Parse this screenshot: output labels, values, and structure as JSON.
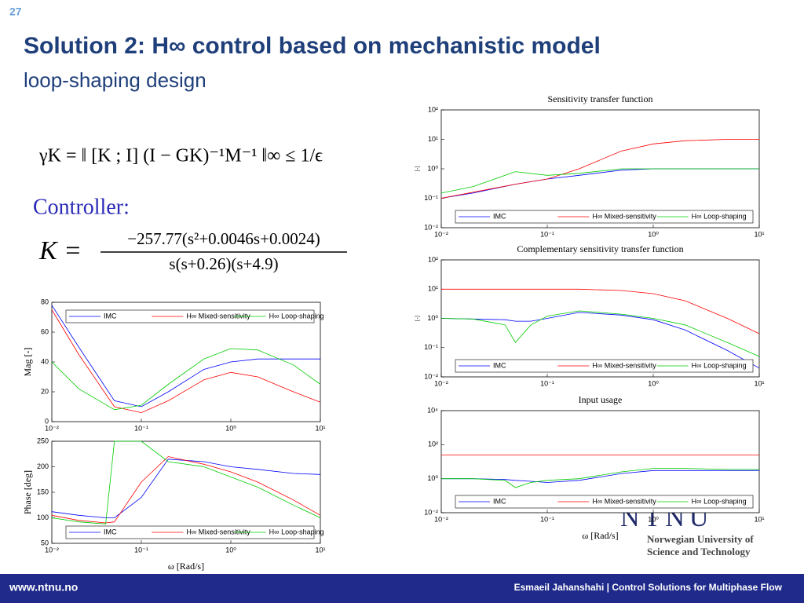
{
  "slide": {
    "page_number": "27",
    "title": "Solution 2: H∞ control based on mechanistic model",
    "subtitle": "loop-shaping design",
    "formula_gamma": "γK = ‖ [K ; I] (I − GK)⁻¹M⁻¹ ‖∞ ≤ 1/ϵ",
    "controller_label": "Controller:",
    "formula_k_lhs": "K =",
    "formula_k_num": "−257.77(s²+0.0046s+0.0024)",
    "formula_k_den": "s(s+0.26)(s+4.9)",
    "logo": "NTNU",
    "university_line1": "Norwegian University of",
    "university_line2": "Science and Technology",
    "footer_left": "www.ntnu.no",
    "footer_right": "Esmaeil Jahanshahi  |  Control Solutions for Multiphase Flow"
  },
  "chart_data": [
    {
      "type": "line",
      "ylabel": "Mag [-]",
      "xlog": true,
      "ylog": false,
      "legend": "top",
      "x": [
        0.01,
        0.02,
        0.05,
        0.1,
        0.2,
        0.5,
        1,
        2,
        5,
        10
      ],
      "xlim": [
        0.01,
        10
      ],
      "xticks": [
        {
          "value": 0.01,
          "label": "10⁻²"
        },
        {
          "value": 0.1,
          "label": "10⁻¹"
        },
        {
          "value": 1,
          "label": "10⁰"
        },
        {
          "value": 10,
          "label": "10¹"
        }
      ],
      "ylim": [
        0,
        80
      ],
      "yticks": [
        0,
        20,
        40,
        60,
        80
      ],
      "series": [
        {
          "name": "IMC",
          "color": "#0000ff",
          "values": [
            78,
            50,
            14,
            10,
            20,
            35,
            40,
            42,
            42,
            42
          ]
        },
        {
          "name": "H∞ Mixed-sensitivity",
          "color": "#ff0000",
          "values": [
            75,
            45,
            10,
            6,
            14,
            28,
            33,
            30,
            20,
            13
          ]
        },
        {
          "name": "H∞ Loop-shaping",
          "color": "#00cc00",
          "values": [
            40,
            22,
            8,
            11,
            25,
            42,
            49,
            48,
            38,
            25
          ]
        }
      ]
    },
    {
      "type": "line",
      "ylabel": "Phase [deg]",
      "xlabel": "ω [Rad/s]",
      "xlog": true,
      "ylog": false,
      "legend": "bottom",
      "x": [
        0.01,
        0.02,
        0.04,
        0.05,
        0.1,
        0.2,
        0.5,
        1,
        2,
        5,
        10
      ],
      "xlim": [
        0.01,
        10
      ],
      "xticks": [
        {
          "value": 0.01,
          "label": "10⁻²"
        },
        {
          "value": 0.1,
          "label": "10⁻¹"
        },
        {
          "value": 1,
          "label": "10⁰"
        },
        {
          "value": 10,
          "label": "10¹"
        }
      ],
      "ylim": [
        50,
        250
      ],
      "yticks": [
        50,
        100,
        150,
        200,
        250
      ],
      "series": [
        {
          "name": "IMC",
          "color": "#0000ff",
          "values": [
            112,
            105,
            100,
            100,
            140,
            215,
            210,
            200,
            195,
            187,
            185
          ]
        },
        {
          "name": "H∞ Mixed-sensitivity",
          "color": "#ff0000",
          "values": [
            105,
            95,
            90,
            92,
            170,
            220,
            205,
            190,
            170,
            135,
            105
          ]
        },
        {
          "name": "H∞ Loop-shaping",
          "color": "#00cc00",
          "values": [
            100,
            92,
            88,
            250,
            250,
            210,
            200,
            180,
            160,
            125,
            100
          ]
        }
      ]
    },
    {
      "type": "line",
      "title": "Sensitivity transfer function",
      "ylabel": "[-]",
      "xlog": true,
      "ylog": true,
      "legend": "bottom",
      "x": [
        0.01,
        0.02,
        0.05,
        0.1,
        0.2,
        0.5,
        1,
        2,
        5,
        10
      ],
      "xlim": [
        0.01,
        10
      ],
      "xticks": [
        {
          "value": 0.01,
          "label": "10⁻²"
        },
        {
          "value": 0.1,
          "label": "10⁻¹"
        },
        {
          "value": 1,
          "label": "10⁰"
        },
        {
          "value": 10,
          "label": "10¹"
        }
      ],
      "ylim": [
        0.01,
        100
      ],
      "yticks": [
        {
          "value": 0.01,
          "label": "10⁻²"
        },
        {
          "value": 0.1,
          "label": "10⁻¹"
        },
        {
          "value": 1,
          "label": "10⁰"
        },
        {
          "value": 10,
          "label": "10¹"
        },
        {
          "value": 100,
          "label": "10²"
        }
      ],
      "series": [
        {
          "name": "IMC",
          "color": "#0000ff",
          "values": [
            0.1,
            0.15,
            0.3,
            0.45,
            0.6,
            0.9,
            1,
            1,
            1,
            1
          ]
        },
        {
          "name": "H∞ Mixed-sensitivity",
          "color": "#ff0000",
          "values": [
            0.1,
            0.16,
            0.3,
            0.45,
            1,
            4,
            7,
            9,
            10,
            10
          ]
        },
        {
          "name": "H∞ Loop-shaping",
          "color": "#00cc00",
          "values": [
            0.15,
            0.25,
            0.8,
            0.6,
            0.7,
            1,
            1,
            1,
            1,
            1
          ]
        }
      ]
    },
    {
      "type": "line",
      "title": "Complementary sensitivity transfer function",
      "ylabel": "[-]",
      "xlog": true,
      "ylog": true,
      "legend": "bottom",
      "x": [
        0.01,
        0.02,
        0.04,
        0.05,
        0.07,
        0.1,
        0.2,
        0.5,
        1,
        2,
        5,
        10
      ],
      "xlim": [
        0.01,
        10
      ],
      "xticks": [
        {
          "value": 0.01,
          "label": "10⁻²"
        },
        {
          "value": 0.1,
          "label": "10⁻¹"
        },
        {
          "value": 1,
          "label": "10⁰"
        },
        {
          "value": 10,
          "label": "10¹"
        }
      ],
      "ylim": [
        0.01,
        100
      ],
      "yticks": [
        {
          "value": 0.01,
          "label": "10⁻²"
        },
        {
          "value": 0.1,
          "label": "10⁻¹"
        },
        {
          "value": 1,
          "label": "10⁰"
        },
        {
          "value": 10,
          "label": "10¹"
        },
        {
          "value": 100,
          "label": "10²"
        }
      ],
      "series": [
        {
          "name": "IMC",
          "color": "#0000ff",
          "values": [
            1,
            0.95,
            0.9,
            0.8,
            0.8,
            1,
            1.6,
            1.3,
            0.9,
            0.4,
            0.08,
            0.02
          ]
        },
        {
          "name": "H∞ Mixed-sensitivity",
          "color": "#ff0000",
          "values": [
            10,
            10,
            10,
            10,
            10,
            10,
            10,
            9,
            7,
            4,
            1,
            0.3
          ]
        },
        {
          "name": "H∞ Loop-shaping",
          "color": "#00cc00",
          "values": [
            1,
            0.95,
            0.6,
            0.15,
            0.6,
            1.2,
            1.8,
            1.4,
            1,
            0.6,
            0.15,
            0.05
          ]
        }
      ]
    },
    {
      "type": "line",
      "title": "Input usage",
      "xlabel": "ω [Rad/s]",
      "xlog": true,
      "ylog": true,
      "legend": "bottom",
      "x": [
        0.01,
        0.02,
        0.04,
        0.05,
        0.07,
        0.1,
        0.2,
        0.5,
        1,
        2,
        5,
        10
      ],
      "xlim": [
        0.01,
        10
      ],
      "xticks": [
        {
          "value": 0.01,
          "label": "10⁻²"
        },
        {
          "value": 0.1,
          "label": "10⁻¹"
        },
        {
          "value": 1,
          "label": "10⁰"
        },
        {
          "value": 10,
          "label": "10¹"
        }
      ],
      "ylim": [
        0.01,
        10000
      ],
      "yticks": [
        {
          "value": 0.01,
          "label": "10⁻²"
        },
        {
          "value": 1,
          "label": "10⁰"
        },
        {
          "value": 100,
          "label": "10²"
        },
        {
          "value": 10000,
          "label": "10⁴"
        }
      ],
      "series": [
        {
          "name": "IMC",
          "color": "#0000ff",
          "values": [
            1,
            1,
            0.9,
            0.8,
            0.7,
            0.6,
            0.8,
            2,
            3,
            3,
            3,
            3
          ]
        },
        {
          "name": "H∞ Mixed-sensitivity",
          "color": "#ff0000",
          "values": [
            25,
            25,
            25,
            25,
            25,
            25,
            25,
            25,
            25,
            25,
            25,
            25
          ]
        },
        {
          "name": "H∞ Loop-shaping",
          "color": "#00cc00",
          "values": [
            1,
            1,
            0.8,
            0.3,
            0.6,
            0.8,
            1,
            2.5,
            4,
            4,
            3.5,
            3.5
          ]
        }
      ]
    }
  ]
}
